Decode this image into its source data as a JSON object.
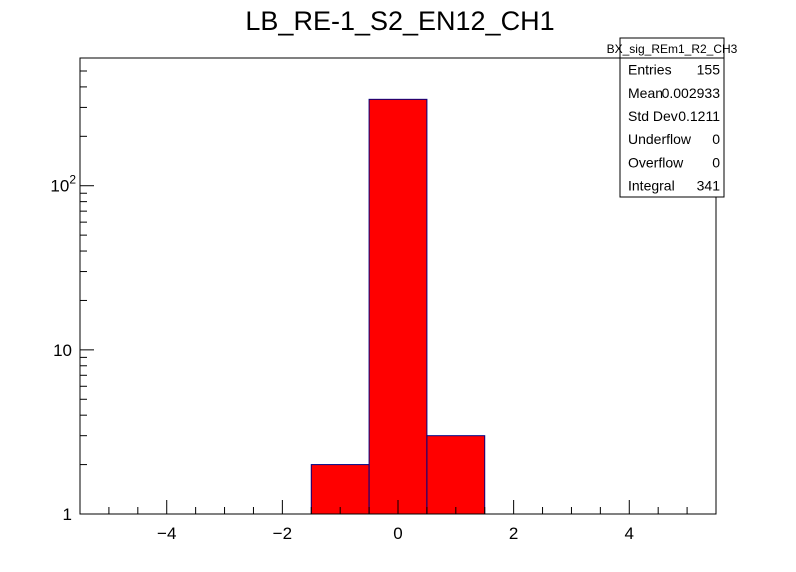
{
  "chart_data": {
    "type": "bar",
    "title": "LB_RE-1_S2_EN12_CH1",
    "xlabel": "",
    "ylabel": "",
    "y_scale": "log",
    "xlim": [
      -5.5,
      5.5
    ],
    "ylim": [
      1,
      600
    ],
    "x_ticks": [
      {
        "value": -4,
        "label": "−4"
      },
      {
        "value": -2,
        "label": "−2"
      },
      {
        "value": 0,
        "label": "0"
      },
      {
        "value": 2,
        "label": "2"
      },
      {
        "value": 4,
        "label": "4"
      }
    ],
    "y_ticks": [
      {
        "value": 1,
        "label": "1"
      },
      {
        "value": 10,
        "label": "10"
      },
      {
        "value": 100,
        "label": "10",
        "exponent": "2"
      }
    ],
    "bins": [
      {
        "x_low": -1.5,
        "x_high": -0.5,
        "value": 2
      },
      {
        "x_low": -0.5,
        "x_high": 0.5,
        "value": 336
      },
      {
        "x_low": 0.5,
        "x_high": 1.5,
        "value": 3
      }
    ],
    "fill_color": "#ff0000",
    "line_color": "#000080",
    "stats_box": {
      "name": "BX_sig_REm1_R2_CH3",
      "rows": [
        {
          "label": "Entries",
          "value": "155"
        },
        {
          "label": "Mean",
          "value": "0.002933"
        },
        {
          "label": "Std Dev",
          "value": "0.1211"
        },
        {
          "label": "Underflow",
          "value": "0"
        },
        {
          "label": "Overflow",
          "value": "0"
        },
        {
          "label": "Integral",
          "value": "341"
        }
      ]
    }
  }
}
